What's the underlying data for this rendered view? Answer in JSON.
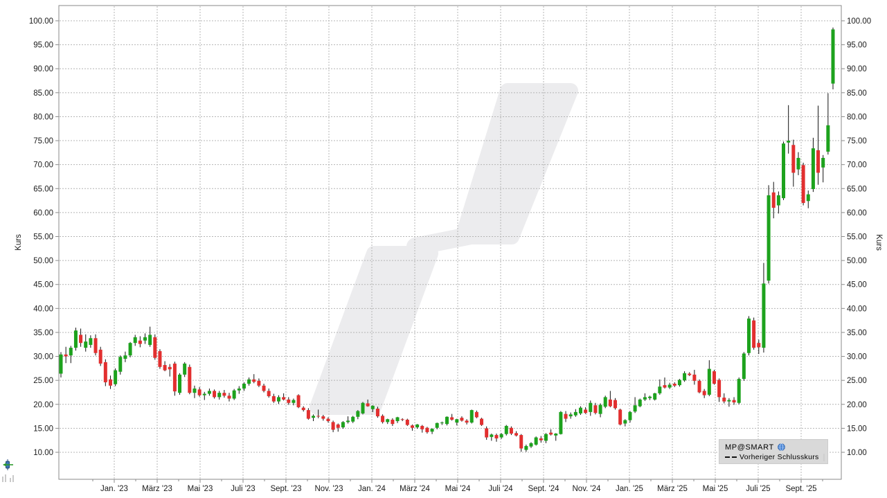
{
  "window": {
    "background": "#ffffff"
  },
  "legend": {
    "symbol": "MP@SMART",
    "previous_close_label": "Vorheriger Schlusskurs",
    "symbol_icon": "globe-icon",
    "previous_close_swatch": "dashed-line",
    "background": "#d9d9d9"
  },
  "corner_tools": {
    "tool1_icon": "candlestick-arrow-icon",
    "tool2_icon": "mini-bars-icon"
  },
  "colors": {
    "up": "#1da21d",
    "down": "#e22f2f",
    "wick": "#111111",
    "grid": "#b4b4b4",
    "axis_text": "#1a1a1a",
    "border": "#8a8a8a",
    "watermark": "#ececee",
    "legend_bg": "#d9d9d9",
    "globe_blue": "#2a6fc9"
  },
  "chart_data": {
    "type": "candlestick",
    "title": "",
    "series_name": "MP@SMART",
    "interval": "weekly",
    "ylabel_left": "Kurs",
    "ylabel_right": "Kurs",
    "ylim": [
      10,
      100
    ],
    "y_step": 5,
    "grid": true,
    "legend_position": "bottom-right",
    "y_tick_labels": [
      "10.00",
      "15.00",
      "20.00",
      "25.00",
      "30.00",
      "35.00",
      "40.00",
      "45.00",
      "50.00",
      "55.00",
      "60.00",
      "65.00",
      "70.00",
      "75.00",
      "80.00",
      "85.00",
      "90.00",
      "95.00",
      "100.00"
    ],
    "x_tick_labels": [
      "Jan. '23",
      "März '23",
      "Mai '23",
      "Juli '23",
      "Sept. '23",
      "Nov. '23",
      "Jan. '24",
      "März '24",
      "Mai '24",
      "Juli '24",
      "Sept. '24",
      "Nov. '24",
      "Jan. '25",
      "März '25",
      "Mai '25",
      "Juli '25",
      "Sept. '25"
    ],
    "candles": [
      [
        26.4,
        30.9,
        25.6,
        30.4
      ],
      [
        30.4,
        32.0,
        28.6,
        30.0
      ],
      [
        30.2,
        32.2,
        28.6,
        31.8
      ],
      [
        31.8,
        36.0,
        31.2,
        35.4
      ],
      [
        34.5,
        35.8,
        32.0,
        32.8
      ],
      [
        31.8,
        34.6,
        31.0,
        33.1
      ],
      [
        32.4,
        34.4,
        31.8,
        33.8
      ],
      [
        33.8,
        34.6,
        30.2,
        30.7
      ],
      [
        31.4,
        32.0,
        28.0,
        28.5
      ],
      [
        28.8,
        29.4,
        23.8,
        24.6
      ],
      [
        25.2,
        26.0,
        23.2,
        23.9
      ],
      [
        24.2,
        27.5,
        23.8,
        27.1
      ],
      [
        26.8,
        30.2,
        26.2,
        29.9
      ],
      [
        29.5,
        31.0,
        28.8,
        30.2
      ],
      [
        30.2,
        33.0,
        29.8,
        32.8
      ],
      [
        32.8,
        34.5,
        32.2,
        34.0
      ],
      [
        33.3,
        34.2,
        31.9,
        32.6
      ],
      [
        33.3,
        34.8,
        32.6,
        34.0
      ],
      [
        32.4,
        36.2,
        32.0,
        34.5
      ],
      [
        34.0,
        34.6,
        29.3,
        29.7
      ],
      [
        31.1,
        31.5,
        27.4,
        27.8
      ],
      [
        28.2,
        29.0,
        26.9,
        27.1
      ],
      [
        27.8,
        28.4,
        25.8,
        27.3
      ],
      [
        28.5,
        28.9,
        21.8,
        22.7
      ],
      [
        22.4,
        26.5,
        22.0,
        26.2
      ],
      [
        26.2,
        28.8,
        25.7,
        28.5
      ],
      [
        27.8,
        28.3,
        22.1,
        22.4
      ],
      [
        22.4,
        23.9,
        21.3,
        23.3
      ],
      [
        23.1,
        23.6,
        21.6,
        21.9
      ],
      [
        21.9,
        22.6,
        20.9,
        22.2
      ],
      [
        22.2,
        23.3,
        21.8,
        22.8
      ],
      [
        22.8,
        23.1,
        21.2,
        21.5
      ],
      [
        21.5,
        22.8,
        21.0,
        22.4
      ],
      [
        22.4,
        23.0,
        21.4,
        21.8
      ],
      [
        21.8,
        22.4,
        20.6,
        21.2
      ],
      [
        21.2,
        23.2,
        20.9,
        22.9
      ],
      [
        22.9,
        23.8,
        22.2,
        23.3
      ],
      [
        23.3,
        24.6,
        22.8,
        24.3
      ],
      [
        24.3,
        25.6,
        23.9,
        25.2
      ],
      [
        25.2,
        26.3,
        24.4,
        24.7
      ],
      [
        24.9,
        25.4,
        23.6,
        23.9
      ],
      [
        23.9,
        24.3,
        22.5,
        22.8
      ],
      [
        22.8,
        23.3,
        21.4,
        21.7
      ],
      [
        21.7,
        22.2,
        20.3,
        20.6
      ],
      [
        20.6,
        21.9,
        20.1,
        21.5
      ],
      [
        21.5,
        22.3,
        20.8,
        21.0
      ],
      [
        21.0,
        21.5,
        19.9,
        20.3
      ],
      [
        20.3,
        21.2,
        19.8,
        20.9
      ],
      [
        21.9,
        22.1,
        19.2,
        19.4
      ],
      [
        19.3,
        19.6,
        18.5,
        18.8
      ],
      [
        18.8,
        19.2,
        16.8,
        17.0
      ],
      [
        17.2,
        17.9,
        16.5,
        17.6
      ],
      [
        17.6,
        18.9,
        17.1,
        17.5
      ],
      [
        17.5,
        17.8,
        16.6,
        17.0
      ],
      [
        17.0,
        17.3,
        16.2,
        16.5
      ],
      [
        16.3,
        16.6,
        14.2,
        14.7
      ],
      [
        15.8,
        16.0,
        14.3,
        15.1
      ],
      [
        15.2,
        16.5,
        14.9,
        16.3
      ],
      [
        16.3,
        17.5,
        16.0,
        16.6
      ],
      [
        16.4,
        17.6,
        16.1,
        17.4
      ],
      [
        17.4,
        18.8,
        16.9,
        18.6
      ],
      [
        18.1,
        20.5,
        17.9,
        20.3
      ],
      [
        20.2,
        21.0,
        19.5,
        19.6
      ],
      [
        19.0,
        19.8,
        18.4,
        19.7
      ],
      [
        19.1,
        19.5,
        17.2,
        17.5
      ],
      [
        17.6,
        17.9,
        16.0,
        16.3
      ],
      [
        16.3,
        17.0,
        15.9,
        16.9
      ],
      [
        16.8,
        17.1,
        15.5,
        15.9
      ],
      [
        16.5,
        17.4,
        16.1,
        17.3
      ],
      [
        16.9,
        17.1,
        16.5,
        16.8
      ],
      [
        16.8,
        17.0,
        15.5,
        15.7
      ],
      [
        15.6,
        15.8,
        14.5,
        15.1
      ],
      [
        15.2,
        15.9,
        14.9,
        15.8
      ],
      [
        15.5,
        15.7,
        14.1,
        14.8
      ],
      [
        15.1,
        15.3,
        13.9,
        14.2
      ],
      [
        14.3,
        15.0,
        13.8,
        14.9
      ],
      [
        15.1,
        16.2,
        14.8,
        16.1
      ],
      [
        16.1,
        16.4,
        15.7,
        16.2
      ],
      [
        15.9,
        17.5,
        15.6,
        17.4
      ],
      [
        17.3,
        18.0,
        16.6,
        16.8
      ],
      [
        16.2,
        17.0,
        15.6,
        16.9
      ],
      [
        17.2,
        17.5,
        16.4,
        16.6
      ],
      [
        16.6,
        16.9,
        15.8,
        16.2
      ],
      [
        16.2,
        18.9,
        16.0,
        18.8
      ],
      [
        18.4,
        18.7,
        17.1,
        17.3
      ],
      [
        17.0,
        17.2,
        15.5,
        15.7
      ],
      [
        15.0,
        15.4,
        12.6,
        13.1
      ],
      [
        13.2,
        13.9,
        12.4,
        13.7
      ],
      [
        13.6,
        13.9,
        12.2,
        12.9
      ],
      [
        13.1,
        14.0,
        12.8,
        13.8
      ],
      [
        13.8,
        15.7,
        13.5,
        15.5
      ],
      [
        15.1,
        15.4,
        13.6,
        13.9
      ],
      [
        14.0,
        14.4,
        13.3,
        13.5
      ],
      [
        13.6,
        13.8,
        10.1,
        10.8
      ],
      [
        10.5,
        11.6,
        10.1,
        11.3
      ],
      [
        11.2,
        12.1,
        10.9,
        11.9
      ],
      [
        11.6,
        13.3,
        11.4,
        13.1
      ],
      [
        12.9,
        13.4,
        12.0,
        12.5
      ],
      [
        12.4,
        14.0,
        11.9,
        13.8
      ],
      [
        14.1,
        14.8,
        13.5,
        13.7
      ],
      [
        13.5,
        14.0,
        12.4,
        13.9
      ],
      [
        13.8,
        18.6,
        13.7,
        18.4
      ],
      [
        18.0,
        18.6,
        16.3,
        17.0
      ],
      [
        17.5,
        18.3,
        17.0,
        17.9
      ],
      [
        17.7,
        19.0,
        17.4,
        18.4
      ],
      [
        18.1,
        19.6,
        17.8,
        19.3
      ],
      [
        18.9,
        19.4,
        18.0,
        18.2
      ],
      [
        18.4,
        20.8,
        17.6,
        20.3
      ],
      [
        19.8,
        20.3,
        17.9,
        18.2
      ],
      [
        18.0,
        20.2,
        17.3,
        19.9
      ],
      [
        19.5,
        21.8,
        19.2,
        21.5
      ],
      [
        21.0,
        22.8,
        19.4,
        19.6
      ],
      [
        20.9,
        21.3,
        18.9,
        19.2
      ],
      [
        18.9,
        19.1,
        15.6,
        15.8
      ],
      [
        16.0,
        16.9,
        15.4,
        16.7
      ],
      [
        16.7,
        18.6,
        16.2,
        18.4
      ],
      [
        18.5,
        21.5,
        18.2,
        19.8
      ],
      [
        19.6,
        21.2,
        19.4,
        21.0
      ],
      [
        21.0,
        22.3,
        20.7,
        21.5
      ],
      [
        21.3,
        21.8,
        20.9,
        21.6
      ],
      [
        21.0,
        22.4,
        20.8,
        22.3
      ],
      [
        22.3,
        25.2,
        22.0,
        23.7
      ],
      [
        24.0,
        25.6,
        23.3,
        23.5
      ],
      [
        23.5,
        24.5,
        23.2,
        24.1
      ],
      [
        24.3,
        24.6,
        23.6,
        23.9
      ],
      [
        24.0,
        25.3,
        23.7,
        25.1
      ],
      [
        25.0,
        26.9,
        24.7,
        26.5
      ],
      [
        26.4,
        26.7,
        25.9,
        26.1
      ],
      [
        26.2,
        27.2,
        24.1,
        24.9
      ],
      [
        24.9,
        25.2,
        22.3,
        22.5
      ],
      [
        22.8,
        23.2,
        21.3,
        21.9
      ],
      [
        22.0,
        29.2,
        21.7,
        27.4
      ],
      [
        26.9,
        27.2,
        24.1,
        24.3
      ],
      [
        25.1,
        25.4,
        20.5,
        21.5
      ],
      [
        21.4,
        22.3,
        20.2,
        20.6
      ],
      [
        20.6,
        21.3,
        19.5,
        20.9
      ],
      [
        20.9,
        21.5,
        19.9,
        20.4
      ],
      [
        20.3,
        25.6,
        20.0,
        25.3
      ],
      [
        25.3,
        30.9,
        24.9,
        30.6
      ],
      [
        30.7,
        38.4,
        30.2,
        37.9
      ],
      [
        37.5,
        38.1,
        31.4,
        31.8
      ],
      [
        32.8,
        33.5,
        30.5,
        31.9
      ],
      [
        31.8,
        49.5,
        30.8,
        45.2
      ],
      [
        45.8,
        65.7,
        45.2,
        63.6
      ],
      [
        64.2,
        66.4,
        58.8,
        61.0
      ],
      [
        61.5,
        64.4,
        59.8,
        63.6
      ],
      [
        63.0,
        74.8,
        62.6,
        74.4
      ],
      [
        74.6,
        82.4,
        72.3,
        75.0
      ],
      [
        74.1,
        75.2,
        65.4,
        68.3
      ],
      [
        69.0,
        72.6,
        67.8,
        71.4
      ],
      [
        69.9,
        70.4,
        61.5,
        62.0
      ],
      [
        62.4,
        64.6,
        60.9,
        63.8
      ],
      [
        64.9,
        75.6,
        64.3,
        73.4
      ],
      [
        73.0,
        82.3,
        65.8,
        68.3
      ],
      [
        69.4,
        72.0,
        66.3,
        71.4
      ],
      [
        72.7,
        84.9,
        72.1,
        78.2
      ],
      [
        86.9,
        98.6,
        85.7,
        98.2
      ]
    ]
  }
}
